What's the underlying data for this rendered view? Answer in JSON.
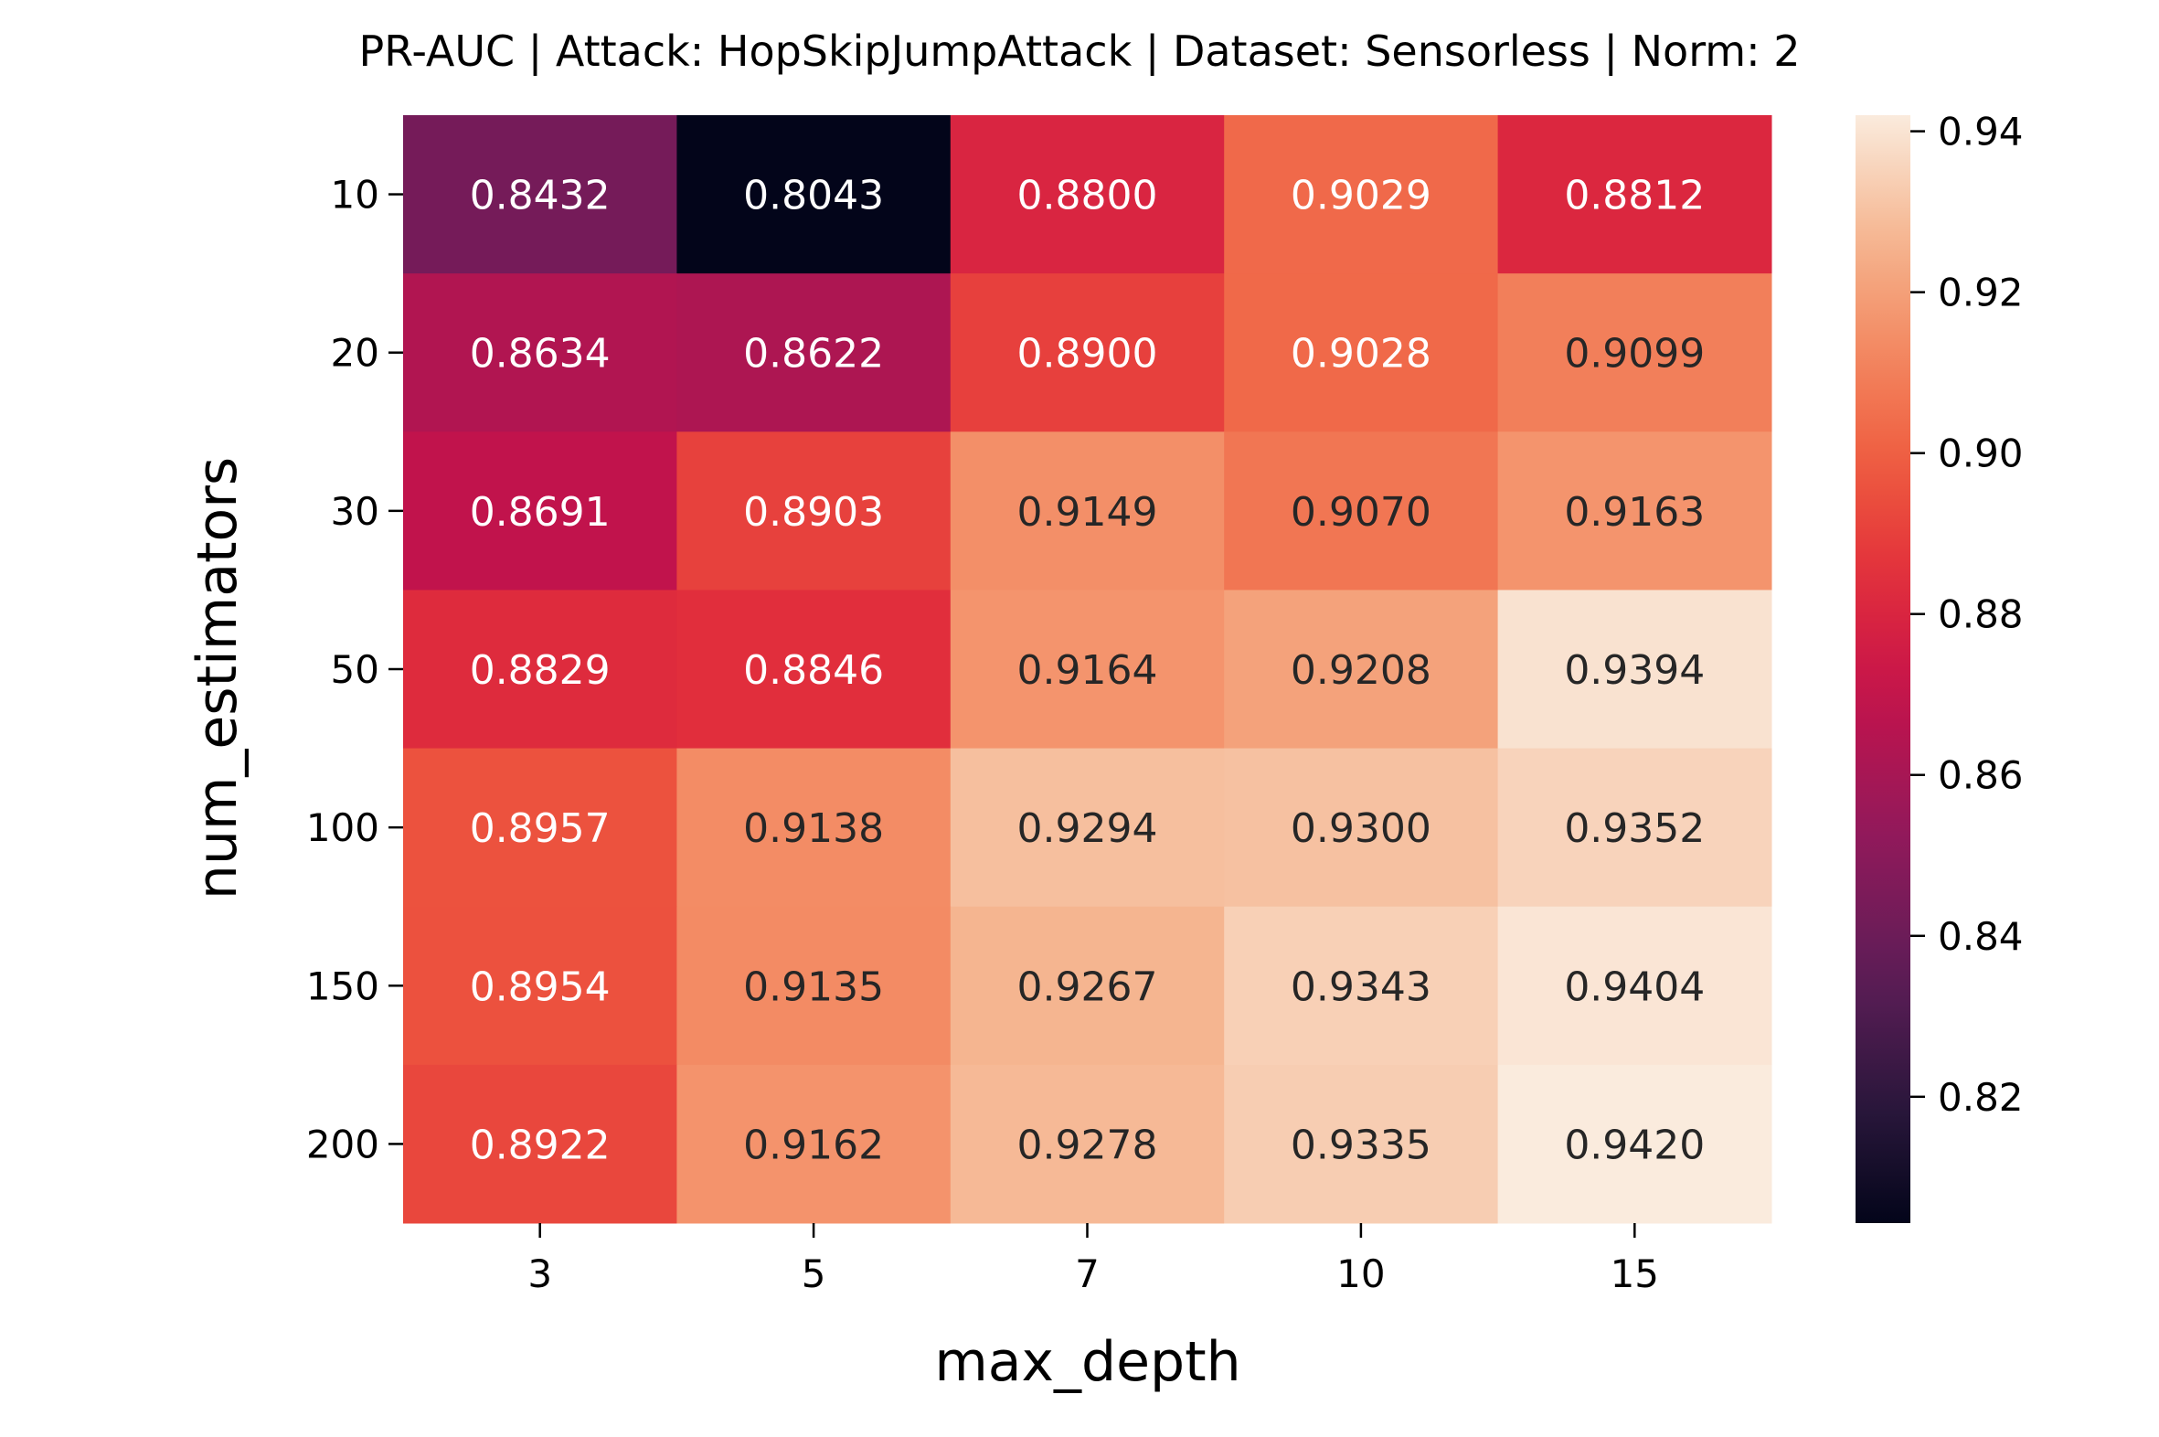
{
  "chart_data": {
    "type": "heatmap",
    "title": "PR-AUC | Attack: HopSkipJumpAttack | Dataset: Sensorless | Norm: 2",
    "xlabel": "max_depth",
    "ylabel": "num_estimators",
    "x_categories": [
      "3",
      "5",
      "7",
      "10",
      "15"
    ],
    "y_categories": [
      "10",
      "20",
      "30",
      "50",
      "100",
      "150",
      "200"
    ],
    "values": [
      [
        0.8432,
        0.8043,
        0.88,
        0.9029,
        0.8812
      ],
      [
        0.8634,
        0.8622,
        0.89,
        0.9028,
        0.9099
      ],
      [
        0.8691,
        0.8903,
        0.9149,
        0.907,
        0.9163
      ],
      [
        0.8829,
        0.8846,
        0.9164,
        0.9208,
        0.9394
      ],
      [
        0.8957,
        0.9138,
        0.9294,
        0.93,
        0.9352
      ],
      [
        0.8954,
        0.9135,
        0.9267,
        0.9343,
        0.9404
      ],
      [
        0.8922,
        0.9162,
        0.9278,
        0.9335,
        0.942
      ]
    ],
    "colorbar": {
      "range": [
        0.8043,
        0.942
      ],
      "ticks": [
        "0.82",
        "0.84",
        "0.86",
        "0.88",
        "0.90",
        "0.92",
        "0.94"
      ],
      "colormap": "rocket"
    }
  }
}
